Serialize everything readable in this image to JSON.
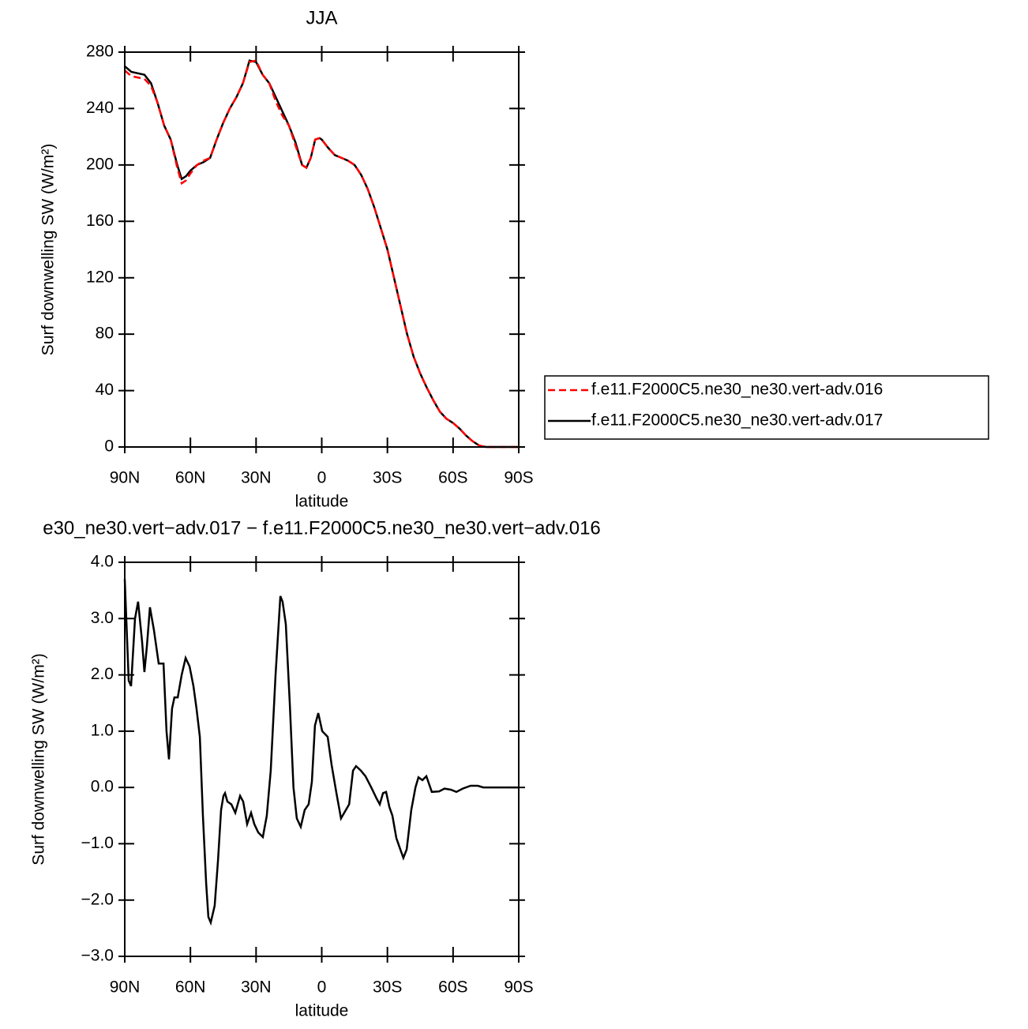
{
  "chart_data": [
    {
      "type": "line",
      "title": "JJA",
      "xlabel": "latitude",
      "ylabel": "Surf downwelling SW (W/m²)",
      "xlim": [
        90,
        -90
      ],
      "ylim": [
        0,
        280
      ],
      "xticks": [
        {
          "value": 90,
          "label": "90N"
        },
        {
          "value": 60,
          "label": "60N"
        },
        {
          "value": 30,
          "label": "30N"
        },
        0,
        {
          "value": -30,
          "label": "30S"
        },
        {
          "value": -60,
          "label": "60S"
        },
        {
          "value": -90,
          "label": "90S"
        }
      ],
      "yticks": [
        0,
        40,
        80,
        120,
        160,
        200,
        240,
        280
      ],
      "x": [
        90,
        87,
        84,
        81,
        78,
        75,
        72,
        69,
        66,
        64,
        62,
        60,
        57,
        54,
        51,
        48,
        45,
        42,
        39,
        36,
        33,
        30,
        27,
        24,
        21,
        18,
        15,
        12,
        9,
        7,
        5,
        3,
        1,
        0,
        -3,
        -6,
        -9,
        -12,
        -15,
        -18,
        -21,
        -24,
        -27,
        -30,
        -33,
        -36,
        -39,
        -42,
        -45,
        -48,
        -51,
        -54,
        -57,
        -60,
        -63,
        -66,
        -69,
        -72,
        -75,
        -78,
        -81,
        -84,
        -87,
        -90
      ],
      "legend": "right",
      "series": [
        {
          "name": "f.e11.F2000C5.ne30_ne30.vert-adv.016",
          "color": "#ff0000",
          "line_style": "dashed",
          "values": [
            267,
            263,
            262,
            261,
            256,
            244,
            228,
            218,
            198,
            187,
            189,
            194,
            200,
            203,
            205,
            218,
            230,
            240,
            248,
            258,
            273,
            274,
            264,
            258,
            245,
            235,
            228,
            214,
            200,
            198,
            205,
            218,
            219,
            218,
            212,
            207,
            205,
            203,
            200,
            193,
            183,
            170,
            155,
            140,
            120,
            100,
            80,
            64,
            52,
            42,
            33,
            25,
            20,
            17,
            13,
            8,
            4,
            1,
            0,
            0,
            0,
            0,
            0,
            0
          ]
        },
        {
          "name": "f.e11.F2000C5.ne30_ne30.vert-adv.017",
          "color": "#000000",
          "line_style": "solid",
          "values": [
            270,
            266,
            265,
            264,
            258,
            244,
            228,
            218,
            200,
            190,
            192,
            196,
            200,
            202,
            205,
            218,
            230,
            240,
            248,
            258,
            274,
            273,
            264,
            258,
            248,
            238,
            228,
            216,
            200,
            198,
            205,
            218,
            219,
            218,
            212,
            207,
            205,
            203,
            200,
            193,
            183,
            170,
            155,
            140,
            120,
            100,
            80,
            64,
            52,
            42,
            33,
            25,
            20,
            17,
            13,
            8,
            4,
            1,
            0,
            0,
            0,
            0,
            0,
            0
          ]
        }
      ]
    },
    {
      "type": "line",
      "title": "e30_ne30.vert−adv.017 − f.e11.F2000C5.ne30_ne30.vert−adv.016",
      "xlabel": "latitude",
      "ylabel": "Surf downwelling SW (W/m²)",
      "xlim": [
        90,
        -90
      ],
      "ylim": [
        -3,
        4
      ],
      "xticks": [
        {
          "value": 90,
          "label": "90N"
        },
        {
          "value": 60,
          "label": "60N"
        },
        {
          "value": 30,
          "label": "30N"
        },
        0,
        {
          "value": -30,
          "label": "30S"
        },
        {
          "value": -60,
          "label": "60S"
        },
        {
          "value": -90,
          "label": "90S"
        }
      ],
      "yticks": [
        {
          "value": -3,
          "label": "−3.0"
        },
        {
          "value": -2,
          "label": "−2.0"
        },
        {
          "value": -1,
          "label": "−1.0"
        },
        {
          "value": 0,
          "label": "0.0"
        },
        {
          "value": 1,
          "label": "1.0"
        },
        {
          "value": 2,
          "label": "2.0"
        },
        {
          "value": 3,
          "label": "3.0"
        },
        {
          "value": 4,
          "label": "4.0"
        }
      ],
      "x": [
        90,
        88.2,
        87.1,
        85.3,
        83.9,
        82.1,
        81.0,
        79.9,
        78.5,
        76.7,
        74.5,
        72.3,
        70.9,
        69.8,
        68.4,
        67.3,
        65.8,
        64.0,
        62.2,
        60.4,
        58.6,
        57.2,
        55.7,
        54.3,
        52.8,
        51.8,
        50.7,
        48.9,
        47.4,
        46.0,
        44.9,
        44.2,
        43.1,
        41.3,
        39.5,
        37.3,
        35.9,
        34.1,
        32.3,
        30.8,
        29.0,
        26.9,
        25.1,
        23.3,
        21.1,
        18.9,
        17.9,
        16.4,
        14.6,
        12.9,
        11.4,
        9.6,
        7.8,
        6.0,
        4.5,
        3.1,
        1.6,
        -0.2,
        -2.7,
        -4.5,
        -6.7,
        -8.8,
        -11.0,
        -12.5,
        -14.3,
        -15.7,
        -17.9,
        -20.0,
        -22.6,
        -25.1,
        -26.5,
        -28.0,
        -29.4,
        -30.9,
        -32.3,
        -34.1,
        -35.9,
        -37.3,
        -38.8,
        -40.9,
        -42.8,
        -44.2,
        -46.0,
        -47.8,
        -50.3,
        -53.6,
        -56.1,
        -59.0,
        -61.5,
        -64.4,
        -68.0,
        -71.3,
        -73.8,
        -78.8,
        -90
      ],
      "series": [
        {
          "color": "#000000",
          "line_style": "solid",
          "values": [
            3.7,
            1.9,
            1.8,
            3.0,
            3.3,
            2.6,
            2.05,
            2.5,
            3.2,
            2.8,
            2.2,
            2.2,
            1.0,
            0.5,
            1.4,
            1.6,
            1.6,
            2.0,
            2.3,
            2.15,
            1.8,
            1.4,
            0.9,
            -0.5,
            -1.7,
            -2.3,
            -2.4,
            -2.1,
            -1.3,
            -0.4,
            -0.15,
            -0.1,
            -0.25,
            -0.3,
            -0.45,
            -0.15,
            -0.25,
            -0.65,
            -0.45,
            -0.65,
            -0.8,
            -0.88,
            -0.5,
            0.3,
            2.0,
            3.4,
            3.3,
            2.9,
            1.5,
            0.0,
            -0.55,
            -0.7,
            -0.4,
            -0.3,
            0.1,
            1.1,
            1.32,
            1.0,
            0.9,
            0.4,
            -0.1,
            -0.55,
            -0.4,
            -0.3,
            0.3,
            0.38,
            0.3,
            0.2,
            0.0,
            -0.2,
            -0.3,
            -0.1,
            -0.08,
            -0.35,
            -0.5,
            -0.9,
            -1.1,
            -1.25,
            -1.1,
            -0.4,
            0.0,
            0.18,
            0.13,
            0.2,
            -0.08,
            -0.07,
            -0.02,
            -0.04,
            -0.08,
            -0.02,
            0.03,
            0.03,
            0.0,
            0.0,
            0.0
          ]
        }
      ]
    }
  ]
}
